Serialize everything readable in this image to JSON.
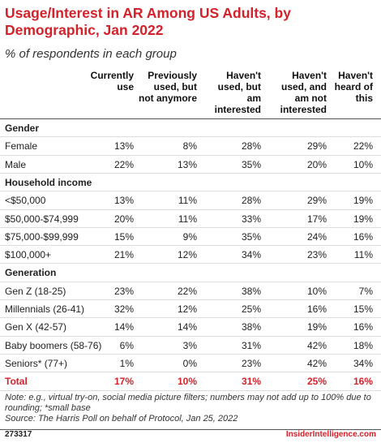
{
  "header": {
    "title": "Usage/Interest in AR Among US Adults, by Demographic, Jan 2022",
    "subtitle": "% of respondents in each group"
  },
  "table": {
    "columns": [
      "Currently use",
      "Previously used, but not anymore",
      "Haven't used, but am interested",
      "Haven't used, and am not interested",
      "Haven't heard of this"
    ],
    "sections": [
      {
        "label": "Gender",
        "rows": [
          {
            "label": "Female",
            "cells": [
              "13%",
              "8%",
              "28%",
              "29%",
              "22%"
            ]
          },
          {
            "label": "Male",
            "cells": [
              "22%",
              "13%",
              "35%",
              "20%",
              "10%"
            ]
          }
        ]
      },
      {
        "label": "Household income",
        "rows": [
          {
            "label": "<$50,000",
            "cells": [
              "13%",
              "11%",
              "28%",
              "29%",
              "19%"
            ]
          },
          {
            "label": "$50,000-$74,999",
            "cells": [
              "20%",
              "11%",
              "33%",
              "17%",
              "19%"
            ]
          },
          {
            "label": "$75,000-$99,999",
            "cells": [
              "15%",
              "9%",
              "35%",
              "24%",
              "16%"
            ]
          },
          {
            "label": "$100,000+",
            "cells": [
              "21%",
              "12%",
              "34%",
              "23%",
              "11%"
            ]
          }
        ]
      },
      {
        "label": "Generation",
        "rows": [
          {
            "label": "Gen Z (18-25)",
            "cells": [
              "23%",
              "22%",
              "38%",
              "10%",
              "7%"
            ]
          },
          {
            "label": "Millennials (26-41)",
            "cells": [
              "32%",
              "12%",
              "25%",
              "16%",
              "15%"
            ]
          },
          {
            "label": "Gen X (42-57)",
            "cells": [
              "14%",
              "14%",
              "38%",
              "19%",
              "16%"
            ]
          },
          {
            "label": "Baby boomers (58-76)",
            "cells": [
              "6%",
              "3%",
              "31%",
              "42%",
              "18%"
            ]
          },
          {
            "label": "Seniors* (77+)",
            "cells": [
              "1%",
              "0%",
              "23%",
              "42%",
              "34%"
            ]
          }
        ]
      }
    ],
    "total": {
      "label": "Total",
      "cells": [
        "17%",
        "10%",
        "31%",
        "25%",
        "16%"
      ]
    }
  },
  "footer": {
    "note": "Note: e.g., virtual try-on, social media picture filters; numbers may not add up to 100% due to rounding; *small base",
    "source": "Source: The Harris Poll on behalf of Protocol, Jan 25, 2022",
    "id": "273317",
    "brand": "InsiderIntelligence.com"
  }
}
